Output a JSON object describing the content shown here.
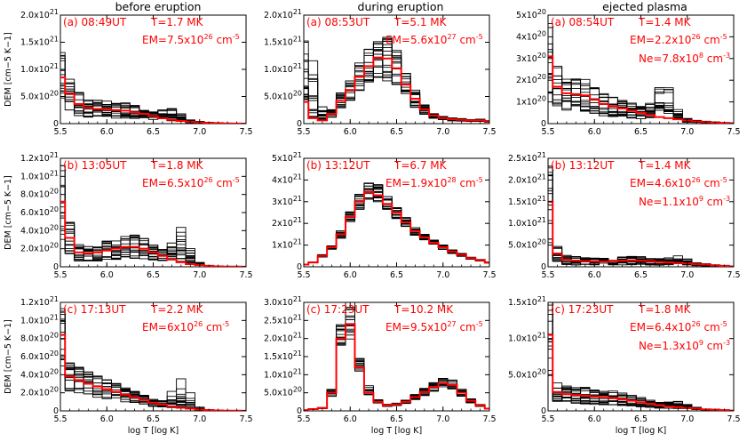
{
  "figure": {
    "column_titles": [
      "before eruption",
      "during eruption",
      "ejected plasma"
    ],
    "ylabel": "DEM [cm^-5 K^-1]",
    "xlabel": "log T [log K]",
    "colors": {
      "curves": "#000000",
      "best_fit": "#ff0000",
      "annotation": "#ff0000"
    }
  },
  "chart_data": [
    {
      "type": "line",
      "panel": "(a)",
      "time": "08:49UT",
      "t_label": "T=1.7 MK",
      "em_label": "EM=7.5x10^26 cm^-5",
      "em_text": "EM=7.5x10",
      "em_exp": "26",
      "em_unit": " cm",
      "em_unit_exp": "-5",
      "ne_label": null,
      "x": [
        5.5,
        5.6,
        5.7,
        5.8,
        5.9,
        6.0,
        6.1,
        6.2,
        6.3,
        6.4,
        6.5,
        6.6,
        6.7,
        6.8,
        6.9,
        7.0,
        7.1,
        7.2,
        7.3,
        7.4,
        7.5
      ],
      "xlim": [
        5.5,
        7.5
      ],
      "xticks": [
        "5.5",
        "6.0",
        "6.5",
        "7.0",
        "7.5"
      ],
      "ylim": [
        0,
        2e+21
      ],
      "yticks": [
        0,
        5e+20,
        1e+21,
        1.5e+21,
        2e+21
      ],
      "ytick_labels": [
        "0",
        "5.0x10^20",
        "1.0x10^21",
        "1.5x10^21",
        "2.0x10^21"
      ],
      "best_fit": [
        8.5e+20,
        5.5e+20,
        3.6e+20,
        2.9e+20,
        2.7e+20,
        2.6e+20,
        2.5e+20,
        2.4e+20,
        2.1e+20,
        1.8e+20,
        1.4e+20,
        1e+20,
        7e+19,
        5e+19,
        3.5e+19,
        2.5e+19,
        1.5e+19,
        1e+19,
        5e+18,
        2e+18,
        1e+18
      ],
      "spread": 0.6,
      "bump_center": 6.7,
      "bump_height": 3e+20
    },
    {
      "type": "line",
      "panel": "(a)",
      "time": "08:53UT",
      "t_label": "T=5.1 MK",
      "em_label": "EM=5.6x10^27 cm^-5",
      "em_text": "EM=5.6x10",
      "em_exp": "27",
      "em_unit": " cm",
      "em_unit_exp": "-5",
      "ne_label": null,
      "x": [
        5.5,
        5.6,
        5.7,
        5.8,
        5.9,
        6.0,
        6.1,
        6.2,
        6.3,
        6.4,
        6.5,
        6.6,
        6.7,
        6.8,
        6.9,
        7.0,
        7.1,
        7.2,
        7.3,
        7.4,
        7.5
      ],
      "xlim": [
        5.5,
        7.5
      ],
      "xticks": [
        "5.5",
        "6.0",
        "6.5",
        "7.0",
        "7.5"
      ],
      "ylim": [
        0,
        2e+21
      ],
      "yticks": [
        0,
        5e+20,
        1e+21,
        1.5e+21,
        2e+21
      ],
      "ytick_labels": [
        "0",
        "5.0x10^20",
        "1.0x10^21",
        "1.5x10^21",
        "2.0x10^21"
      ],
      "best_fit": [
        4e+20,
        1e+20,
        6e+19,
        1.8e+20,
        4.2e+20,
        6.2e+20,
        8.6e+20,
        1.06e+21,
        1.22e+21,
        1.2e+21,
        1.02e+21,
        7.2e+20,
        4.6e+20,
        2.6e+20,
        1.5e+20,
        1e+20,
        8e+19,
        7e+19,
        6e+19,
        6e+19,
        4e+19
      ],
      "spread": 0.35,
      "bump_center": 5.55,
      "bump_height": 1.4e+21
    },
    {
      "type": "line",
      "panel": "(a)",
      "time": "08:54UT",
      "t_label": "T=1.4 MK",
      "em_label": "EM=2.2x10^26 cm^-5",
      "em_text": "EM=2.2x10",
      "em_exp": "26",
      "em_unit": " cm",
      "em_unit_exp": "-5",
      "ne_label": "Ne=7.8x10^8 cm^-3",
      "ne_text": "Ne=7.8x10",
      "ne_exp": "8",
      "ne_unit": " cm",
      "ne_unit_exp": "-3",
      "x": [
        5.5,
        5.6,
        5.7,
        5.8,
        5.9,
        6.0,
        6.1,
        6.2,
        6.3,
        6.4,
        6.5,
        6.6,
        6.7,
        6.8,
        6.9,
        7.0,
        7.1,
        7.2,
        7.3,
        7.4,
        7.5
      ],
      "xlim": [
        5.5,
        7.5
      ],
      "xticks": [
        "5.5",
        "6.0",
        "6.5",
        "7.0",
        "7.5"
      ],
      "ylim": [
        0,
        5e+20
      ],
      "yticks": [
        0,
        1e+20,
        2e+20,
        3e+20,
        4e+20,
        5e+20
      ],
      "ytick_labels": [
        "0",
        "1x10^20",
        "2x10^20",
        "3x10^20",
        "4x10^20",
        "5x10^20"
      ],
      "best_fit": [
        3.1e+20,
        1.7e+20,
        1.4e+20,
        1.35e+20,
        1.3e+20,
        1.1e+20,
        9e+19,
        8e+19,
        7e+19,
        6e+19,
        5e+19,
        4e+19,
        3e+19,
        2.5e+19,
        2e+19,
        1.5e+19,
        1e+19,
        7e+18,
        5e+18,
        3e+18,
        2e+18
      ],
      "spread": 0.6,
      "bump_center": 6.75,
      "bump_height": 2.6e+20
    },
    {
      "type": "line",
      "panel": "(b)",
      "time": "13:05UT",
      "t_label": "T=1.8 MK",
      "em_label": "EM=6.5x10^26 cm^-5",
      "em_text": "EM=6.5x10",
      "em_exp": "26",
      "em_unit": " cm",
      "em_unit_exp": "-5",
      "ne_label": null,
      "x": [
        5.5,
        5.6,
        5.7,
        5.8,
        5.9,
        6.0,
        6.1,
        6.2,
        6.3,
        6.4,
        6.5,
        6.6,
        6.7,
        6.8,
        6.9,
        7.0,
        7.1,
        7.2,
        7.3,
        7.4,
        7.5
      ],
      "xlim": [
        5.5,
        7.5
      ],
      "xticks": [
        "5.5",
        "6.0",
        "6.5",
        "7.0",
        "7.5"
      ],
      "ylim": [
        0,
        1.2e+21
      ],
      "yticks": [
        0,
        2e+20,
        4e+20,
        6e+20,
        8e+20,
        1e+21,
        1.2e+21
      ],
      "ytick_labels": [
        "0",
        "2.0x10^20",
        "4.0x10^20",
        "6.0x10^20",
        "8.0x10^20",
        "1.0x10^21",
        "1.2x10^21"
      ],
      "best_fit": [
        7.2e+20,
        3.2e+20,
        1.6e+20,
        1.5e+20,
        1.6e+20,
        1.8e+20,
        2e+20,
        2.2e+20,
        2.2e+20,
        2e+20,
        1.6e+20,
        1.2e+20,
        8e+19,
        5e+19,
        3e+19,
        2e+19,
        1e+19,
        5e+18,
        3e+18,
        2e+18,
        1e+18
      ],
      "spread": 0.6,
      "bump_center": 6.8,
      "bump_height": 4.5e+20
    },
    {
      "type": "line",
      "panel": "(b)",
      "time": "13:12UT",
      "t_label": "T=6.7 MK",
      "em_label": "EM=1.9x10^28 cm^-5",
      "em_text": "EM=1.9x10",
      "em_exp": "28",
      "em_unit": " cm",
      "em_unit_exp": "-5",
      "ne_label": null,
      "x": [
        5.5,
        5.6,
        5.7,
        5.8,
        5.9,
        6.0,
        6.1,
        6.2,
        6.3,
        6.4,
        6.5,
        6.6,
        6.7,
        6.8,
        6.9,
        7.0,
        7.1,
        7.2,
        7.3,
        7.4,
        7.5
      ],
      "xlim": [
        5.5,
        7.5
      ],
      "xticks": [
        "5.5",
        "6.0",
        "6.5",
        "7.0",
        "7.5"
      ],
      "ylim": [
        0,
        5e+21
      ],
      "yticks": [
        0,
        1e+21,
        2e+21,
        3e+21,
        4e+21,
        5e+21
      ],
      "ytick_labels": [
        "0",
        "1x10^21",
        "2x10^21",
        "3x10^21",
        "4x10^21",
        "5x10^21"
      ],
      "best_fit": [
        1e+20,
        2e+20,
        5e+20,
        9e+20,
        1.5e+21,
        2.3e+21,
        3e+21,
        3.45e+21,
        3.3e+21,
        2.9e+21,
        2.5e+21,
        2.05e+21,
        1.65e+21,
        1.35e+21,
        1.1e+21,
        9e+20,
        7e+20,
        5.5e+20,
        4e+20,
        3e+20,
        2e+20
      ],
      "spread": 0.12,
      "bump_center": 6.3,
      "bump_height": 2e+20
    },
    {
      "type": "line",
      "panel": "(b)",
      "time": "13:12UT",
      "t_label": "T=1.4 MK",
      "em_label": "EM=4.6x10^26 cm^-5",
      "em_text": "EM=4.6x10",
      "em_exp": "26",
      "em_unit": " cm",
      "em_unit_exp": "-5",
      "ne_label": "Ne=1.1x10^9 cm^-3",
      "ne_text": "Ne=1.1x10",
      "ne_exp": "9",
      "ne_unit": " cm",
      "ne_unit_exp": "-3",
      "x": [
        5.5,
        5.6,
        5.7,
        5.8,
        5.9,
        6.0,
        6.1,
        6.2,
        6.3,
        6.4,
        6.5,
        6.6,
        6.7,
        6.8,
        6.9,
        7.0,
        7.1,
        7.2,
        7.3,
        7.4,
        7.5
      ],
      "xlim": [
        5.5,
        7.5
      ],
      "xticks": [
        "5.5",
        "6.0",
        "6.5",
        "7.0",
        "7.5"
      ],
      "ylim": [
        0,
        2.5e+21
      ],
      "yticks": [
        0,
        5e+20,
        1e+21,
        1.5e+21,
        2e+21,
        2.5e+21
      ],
      "ytick_labels": [
        "0",
        "5.0x10^20",
        "1.0x10^21",
        "1.5x10^21",
        "2.0x10^21",
        "2.5x10^21"
      ],
      "best_fit": [
        1.5e+21,
        3e+20,
        1.6e+20,
        1.4e+20,
        1.3e+20,
        1.2e+20,
        1.2e+20,
        1.3e+20,
        1.4e+20,
        1.5e+20,
        1.4e+20,
        1.3e+20,
        1.1e+20,
        1e+20,
        9e+19,
        8e+19,
        6e+19,
        5e+19,
        3e+19,
        2e+19,
        1e+19
      ],
      "spread": 0.7,
      "bump_center": 6.9,
      "bump_height": 1.5e+20
    },
    {
      "type": "line",
      "panel": "(c)",
      "time": "17:13UT",
      "t_label": "T=2.2 MK",
      "em_label": "EM=6x10^26 cm^-5",
      "em_text": "EM=6x10",
      "em_exp": "26",
      "em_unit": " cm",
      "em_unit_exp": "-5",
      "ne_label": null,
      "x": [
        5.5,
        5.6,
        5.7,
        5.8,
        5.9,
        6.0,
        6.1,
        6.2,
        6.3,
        6.4,
        6.5,
        6.6,
        6.7,
        6.8,
        6.9,
        7.0,
        7.1,
        7.2,
        7.3,
        7.4,
        7.5
      ],
      "xlim": [
        5.5,
        7.5
      ],
      "xticks": [
        "5.5",
        "6.0",
        "6.5",
        "7.0",
        "7.5"
      ],
      "ylim": [
        0,
        1.2e+21
      ],
      "yticks": [
        0,
        2e+20,
        4e+20,
        6e+20,
        8e+20,
        1e+21,
        1.2e+21
      ],
      "ytick_labels": [
        "0",
        "2.0x10^20",
        "4.0x10^20",
        "6.0x10^20",
        "8.0x10^20",
        "1.0x10^21",
        "1.2x10^21"
      ],
      "best_fit": [
        8.4e+20,
        3.8e+20,
        3.4e+20,
        3e+20,
        2.7e+20,
        2.4e+20,
        2.1e+20,
        1.8e+20,
        1.5e+20,
        1.2e+20,
        9e+19,
        7e+19,
        5e+19,
        3.5e+19,
        2.5e+19,
        1.5e+19,
        1e+19,
        5e+18,
        3e+18,
        2e+18,
        1e+18
      ],
      "spread": 0.45,
      "bump_center": 6.8,
      "bump_height": 3.5e+20
    },
    {
      "type": "line",
      "panel": "(c)",
      "time": "17:23UT",
      "t_label": "T=10.2 MK",
      "em_label": "EM=9.5x10^27 cm^-5",
      "em_text": "EM=9.5x10",
      "em_exp": "27",
      "em_unit": " cm",
      "em_unit_exp": "-5",
      "ne_label": null,
      "x": [
        5.5,
        5.6,
        5.7,
        5.8,
        5.9,
        6.0,
        6.1,
        6.2,
        6.3,
        6.4,
        6.5,
        6.6,
        6.7,
        6.8,
        6.9,
        7.0,
        7.1,
        7.2,
        7.3,
        7.4,
        7.5
      ],
      "xlim": [
        5.5,
        7.5
      ],
      "xticks": [
        "5.5",
        "6.0",
        "6.5",
        "7.0",
        "7.5"
      ],
      "ylim": [
        0,
        3e+21
      ],
      "yticks": [
        0,
        5e+20,
        1e+21,
        1.5e+21,
        2e+21,
        2.5e+21,
        3e+21
      ],
      "ytick_labels": [
        "0",
        "5.0x10^20",
        "1.0x10^21",
        "1.5x10^21",
        "2.0x10^21",
        "2.5x10^21",
        "3.0x10^21"
      ],
      "best_fit": [
        2e+19,
        5e+19,
        8e+19,
        5e+20,
        2e+21,
        2.4e+21,
        1.2e+21,
        5e+20,
        2.5e+20,
        1.5e+20,
        1.8e+20,
        2.5e+20,
        3.8e+20,
        5.2e+20,
        6.6e+20,
        7.6e+20,
        7.2e+20,
        5e+20,
        2.8e+20,
        1.5e+20,
        6e+19
      ],
      "spread": 0.2,
      "bump_center": 6.1,
      "bump_height": 3.5e+20
    },
    {
      "type": "line",
      "panel": "(c)",
      "time": "17:23UT",
      "t_label": "T=1.8 MK",
      "em_label": "EM=6.4x10^26 cm^-5",
      "em_text": "EM=6.4x10",
      "em_exp": "26",
      "em_unit": " cm",
      "em_unit_exp": "-5",
      "ne_label": "Ne=1.3x10^9 cm^-3",
      "ne_text": "Ne=1.3x10",
      "ne_exp": "9",
      "ne_unit": " cm",
      "ne_unit_exp": "-3",
      "x": [
        5.5,
        5.6,
        5.7,
        5.8,
        5.9,
        6.0,
        6.1,
        6.2,
        6.3,
        6.4,
        6.5,
        6.6,
        6.7,
        6.8,
        6.9,
        7.0,
        7.1,
        7.2,
        7.3,
        7.4,
        7.5
      ],
      "xlim": [
        5.5,
        7.5
      ],
      "xticks": [
        "5.5",
        "6.0",
        "6.5",
        "7.0",
        "7.5"
      ],
      "ylim": [
        0,
        1.5e+21
      ],
      "yticks": [
        0,
        5e+20,
        1e+21,
        1.5e+21
      ],
      "ytick_labels": [
        "0",
        "5.0x10^20",
        "1.0x10^21",
        "1.5x10^21"
      ],
      "best_fit": [
        1.05e+21,
        2.6e+20,
        2.3e+20,
        2.2e+20,
        2.1e+20,
        2e+20,
        1.9e+20,
        1.8e+20,
        1.6e+20,
        1.4e+20,
        1.2e+20,
        1e+20,
        8e+19,
        6e+19,
        5e+19,
        4e+19,
        3e+19,
        2e+19,
        1.5e+19,
        1e+19,
        5e+18
      ],
      "spread": 0.55,
      "bump_center": 6.9,
      "bump_height": 1.5e+20
    }
  ]
}
